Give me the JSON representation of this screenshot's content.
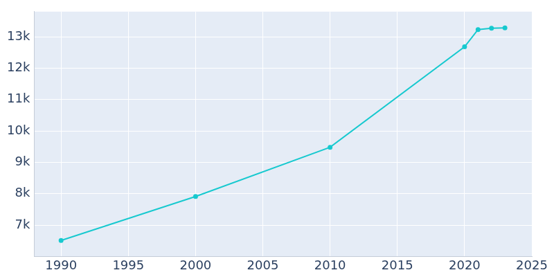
{
  "chart_data": {
    "type": "line",
    "x": [
      1990,
      2000,
      2010,
      2020,
      2021,
      2022,
      2023
    ],
    "values": [
      6510,
      7910,
      9480,
      12680,
      13230,
      13270,
      13280
    ],
    "color": "#17c9cf",
    "marker": "circle",
    "xlim": [
      1988,
      2025
    ],
    "xticks": [
      1990,
      1995,
      2000,
      2005,
      2010,
      2015,
      2020,
      2025
    ],
    "ylim": [
      6000,
      13800
    ],
    "yticks": [
      {
        "value": 7000,
        "label": "7k"
      },
      {
        "value": 8000,
        "label": "8k"
      },
      {
        "value": 9000,
        "label": "9k"
      },
      {
        "value": 10000,
        "label": "10k"
      },
      {
        "value": 11000,
        "label": "11k"
      },
      {
        "value": 12000,
        "label": "12k"
      },
      {
        "value": 13000,
        "label": "13k"
      }
    ],
    "grid": true
  }
}
